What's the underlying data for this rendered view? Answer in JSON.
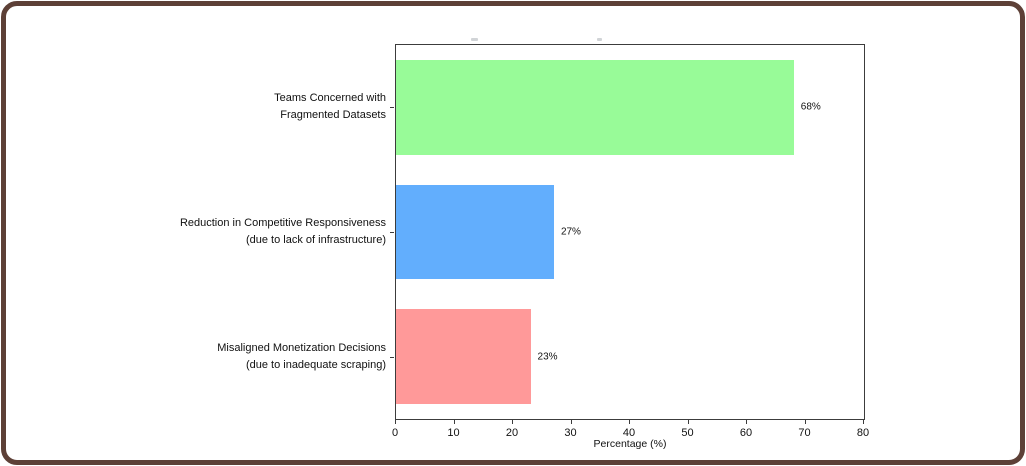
{
  "figure": {
    "frame_color": "#5d4037",
    "background_color": "#ffffff",
    "spine_color": "#3c3c3c",
    "text_color": "#111111"
  },
  "chart_data": {
    "type": "bar",
    "orientation": "horizontal",
    "title": "",
    "categories": [
      "Teams Concerned with\nFragmented Datasets",
      "Reduction in Competitive Responsiveness\n(due to lack of infrastructure)",
      "Misaligned Monetization Decisions\n(due to inadequate scraping)"
    ],
    "values": [
      68,
      27,
      23
    ],
    "value_labels": [
      "68%",
      "27%",
      "23%"
    ],
    "bar_colors": [
      "#98fb98",
      "#62aefd",
      "#ff9999"
    ],
    "xlabel": "Percentage (%)",
    "ylabel": "",
    "xlim": [
      0,
      80
    ],
    "x_ticks": [
      0,
      10,
      20,
      30,
      40,
      50,
      60,
      70,
      80
    ],
    "grid": false,
    "legend": null,
    "bar_band_fraction": 0.76
  }
}
